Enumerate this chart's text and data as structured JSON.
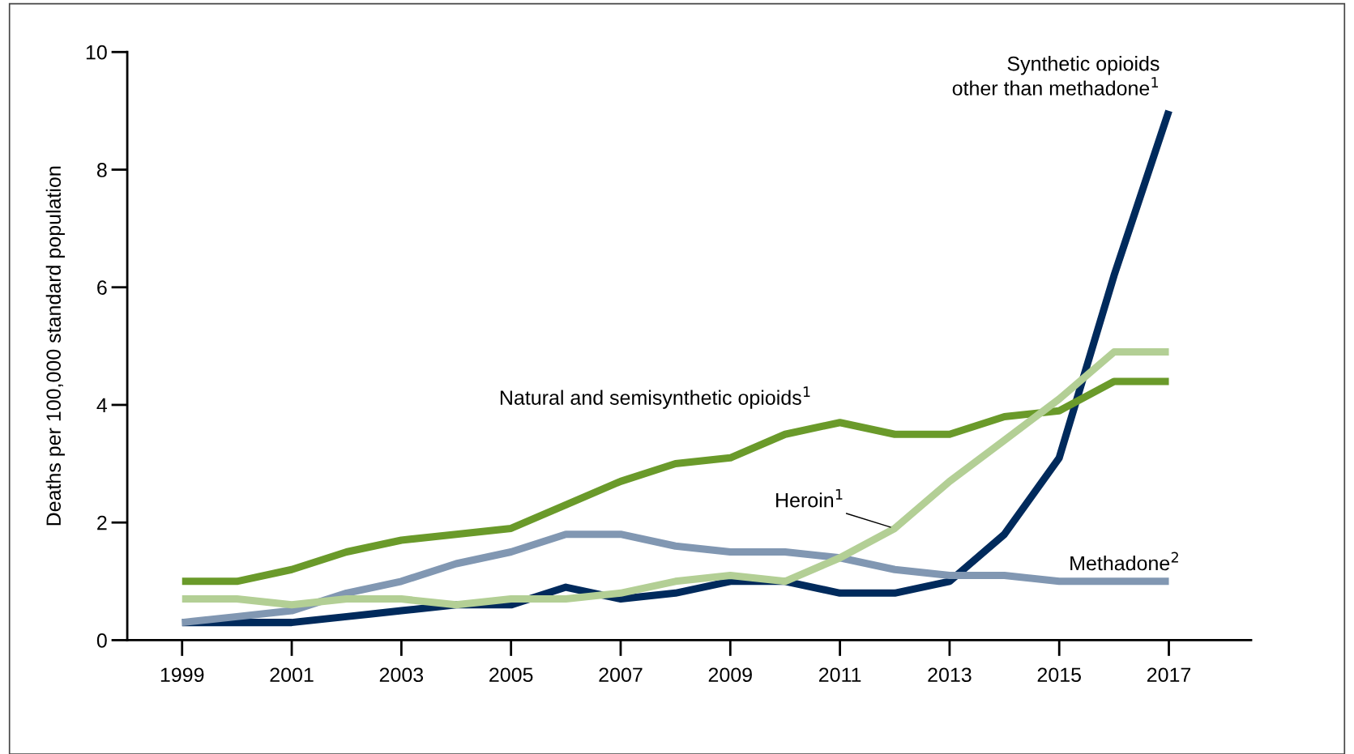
{
  "chart_data": {
    "type": "line",
    "ylabel": "Deaths per 100,000 standard population",
    "x": [
      1999,
      2000,
      2001,
      2002,
      2003,
      2004,
      2005,
      2006,
      2007,
      2008,
      2009,
      2010,
      2011,
      2012,
      2013,
      2014,
      2015,
      2016,
      2017
    ],
    "series": [
      {
        "name": "Synthetic opioids\nother than methadone$^{1}$",
        "color": "#002a5c",
        "values": [
          0.3,
          0.3,
          0.3,
          0.4,
          0.5,
          0.6,
          0.6,
          0.9,
          0.7,
          0.8,
          1.0,
          1.0,
          0.8,
          0.8,
          1.0,
          1.8,
          3.1,
          6.2,
          9.0
        ]
      },
      {
        "name": "Natural and semisynthetic opioids$^{1}$",
        "color": "#6a9a2a",
        "values": [
          1.0,
          1.0,
          1.2,
          1.5,
          1.7,
          1.8,
          1.9,
          2.3,
          2.7,
          3.0,
          3.1,
          3.5,
          3.7,
          3.5,
          3.5,
          3.8,
          3.9,
          4.4,
          4.4
        ]
      },
      {
        "name": "Methadone$^{2}$",
        "color": "#8197b2",
        "values": [
          0.3,
          0.4,
          0.5,
          0.8,
          1.0,
          1.3,
          1.5,
          1.8,
          1.8,
          1.6,
          1.5,
          1.5,
          1.4,
          1.2,
          1.1,
          1.1,
          1.0,
          1.0,
          1.0
        ]
      },
      {
        "name": "Heroin$^{1}$",
        "color": "#b3cf95",
        "values": [
          0.7,
          0.7,
          0.6,
          0.7,
          0.7,
          0.6,
          0.7,
          0.7,
          0.8,
          1.0,
          1.1,
          1.0,
          1.4,
          1.9,
          2.7,
          3.4,
          4.1,
          4.9,
          4.9
        ]
      }
    ],
    "xlim": [
      1998,
      2018.5
    ],
    "xticks": [
      1999,
      2001,
      2003,
      2005,
      2007,
      2009,
      2011,
      2013,
      2015,
      2017
    ],
    "ylim": [
      0,
      10
    ],
    "yticks": [
      0,
      2,
      4,
      6,
      8,
      10
    ],
    "grid": false,
    "legend": false,
    "marker": "none",
    "line_style": "solid"
  }
}
